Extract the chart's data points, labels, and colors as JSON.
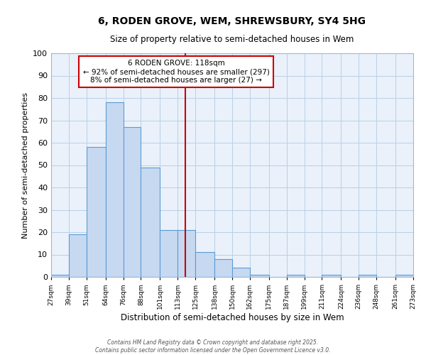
{
  "title": "6, RODEN GROVE, WEM, SHREWSBURY, SY4 5HG",
  "subtitle": "Size of property relative to semi-detached houses in Wem",
  "xlabel": "Distribution of semi-detached houses by size in Wem",
  "ylabel": "Number of semi-detached properties",
  "bar_values": [
    1,
    19,
    58,
    78,
    67,
    49,
    21,
    21,
    11,
    8,
    4,
    1,
    0,
    1,
    0,
    1,
    0,
    1,
    0,
    1
  ],
  "bin_edges": [
    27,
    39,
    51,
    64,
    76,
    88,
    101,
    113,
    125,
    138,
    150,
    162,
    175,
    187,
    199,
    211,
    224,
    236,
    248,
    261,
    273
  ],
  "bar_labels": [
    "27sqm",
    "39sqm",
    "51sqm",
    "64sqm",
    "76sqm",
    "88sqm",
    "101sqm",
    "113sqm",
    "125sqm",
    "138sqm",
    "150sqm",
    "162sqm",
    "175sqm",
    "187sqm",
    "199sqm",
    "211sqm",
    "224sqm",
    "236sqm",
    "248sqm",
    "261sqm",
    "273sqm"
  ],
  "bar_color": "#c6d9f1",
  "bar_edge_color": "#5b9bd5",
  "property_value": 118,
  "property_line_color": "#cc0000",
  "annotation_text_line1": "6 RODEN GROVE: 118sqm",
  "annotation_text_line2": "← 92% of semi-detached houses are smaller (297)",
  "annotation_text_line3": "8% of semi-detached houses are larger (27) →",
  "annotation_box_facecolor": "#ffffff",
  "annotation_box_edgecolor": "#cc0000",
  "ylim": [
    0,
    100
  ],
  "yticks": [
    0,
    10,
    20,
    30,
    40,
    50,
    60,
    70,
    80,
    90,
    100
  ],
  "bg_color": "#eaf1fa",
  "fig_bg_color": "#ffffff",
  "grid_color": "#b8cfe8",
  "footer_line1": "Contains HM Land Registry data © Crown copyright and database right 2025.",
  "footer_line2": "Contains public sector information licensed under the Open Government Licence v3.0."
}
